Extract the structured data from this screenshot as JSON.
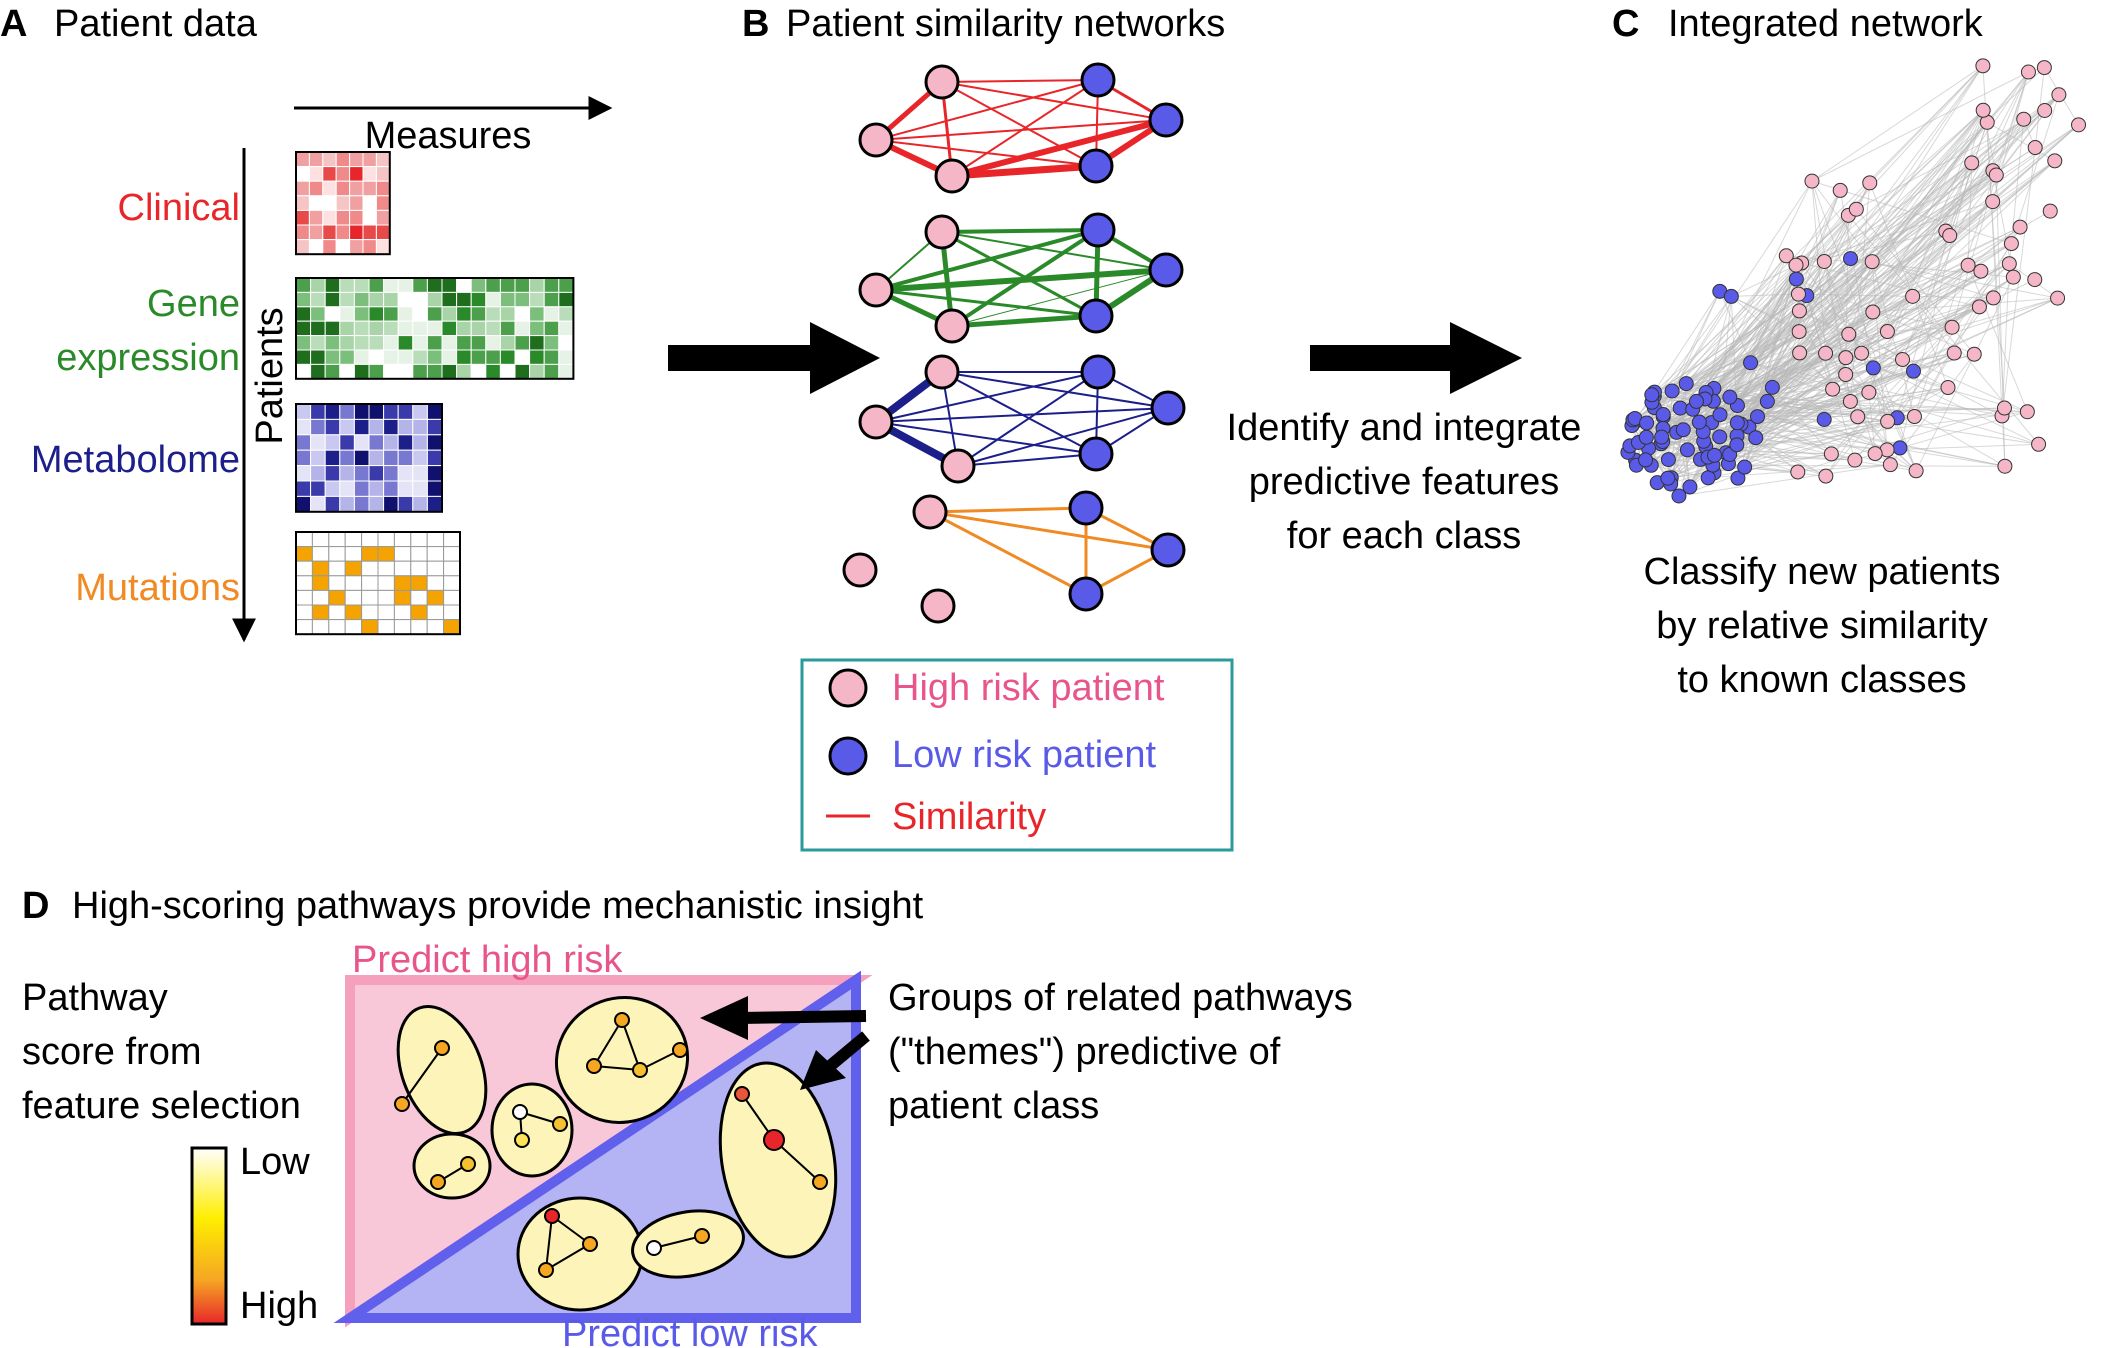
{
  "panel_a": {
    "letter": "A",
    "title": "Patient data",
    "measures_label": "Measures",
    "patients_label": "Patients",
    "datasets": {
      "clinical": "Clinical",
      "gene_line1": "Gene",
      "gene_line2": "expression",
      "metabolome": "Metabolome",
      "mutations": "Mutations"
    }
  },
  "panel_b": {
    "letter": "B",
    "title": "Patient similarity networks",
    "legend": {
      "high": "High risk patient",
      "low": "Low risk patient",
      "similarity": "Similarity"
    }
  },
  "middle_text": {
    "line1": "Identify and integrate",
    "line2": "predictive features",
    "line3": "for each class"
  },
  "panel_c": {
    "letter": "C",
    "title": "Integrated network",
    "caption_line1": "Classify new patients",
    "caption_line2": "by relative similarity",
    "caption_line3": "to known classes"
  },
  "panel_d": {
    "letter": "D",
    "title": "High-scoring pathways provide mechanistic insight",
    "score_line1": "Pathway",
    "score_line2": "score from",
    "score_line3": "feature selection",
    "scale_low": "Low",
    "scale_high": "High",
    "predict_high": "Predict high risk",
    "predict_low": "Predict low risk",
    "themes_line1": "Groups of related pathways",
    "themes_line2": "(\"themes\") predictive of",
    "themes_line3": "patient class"
  },
  "colors": {
    "clinical": "#e8262a",
    "gene": "#2a8a2a",
    "metabolome": "#1c1f8a",
    "mutations": "#f08a24",
    "high_risk": "#f5b6c8",
    "low_risk": "#5a5ae8",
    "high_text": "#e8558a",
    "low_text": "#5a5ae8",
    "legend_box": "#2a9a9a"
  }
}
